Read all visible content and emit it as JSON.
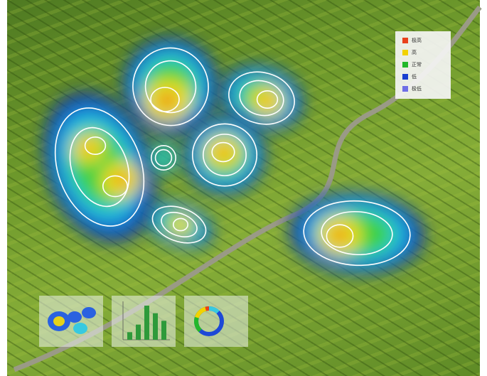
{
  "legend": {
    "items": [
      {
        "label": "极高",
        "color": "#e8401c"
      },
      {
        "label": "高",
        "color": "#f2d200"
      },
      {
        "label": "正常",
        "color": "#22b82a"
      },
      {
        "label": "低",
        "color": "#1a3fd0"
      },
      {
        "label": "极低",
        "color": "#6f6fe6"
      }
    ]
  },
  "thumbnails": {
    "bar_chart": {
      "values": [
        2,
        4,
        9,
        7,
        5
      ],
      "color": "#2e9a3a"
    }
  }
}
